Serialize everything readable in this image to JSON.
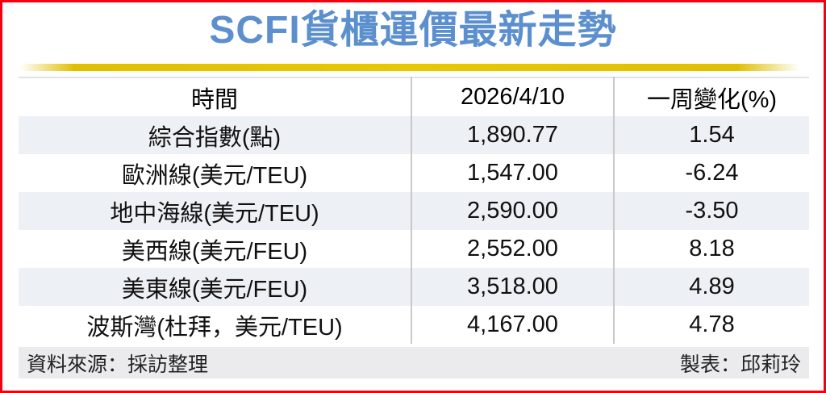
{
  "title": "SCFI貨櫃運價最新走勢",
  "table": {
    "columns": [
      "時間",
      "2026/4/10",
      "一周變化(%)"
    ],
    "rows": [
      {
        "label": "綜合指數(點)",
        "value": "1,890.77",
        "change": "1.54"
      },
      {
        "label": "歐洲線(美元/TEU)",
        "value": "1,547.00",
        "change": "-6.24"
      },
      {
        "label": "地中海線(美元/TEU)",
        "value": "2,590.00",
        "change": "-3.50"
      },
      {
        "label": "美西線(美元/FEU)",
        "value": "2,552.00",
        "change": "8.18"
      },
      {
        "label": "美東線(美元/FEU)",
        "value": "3,518.00",
        "change": "4.89"
      },
      {
        "label": "波斯灣(杜拜，美元/TEU)",
        "value": "4,167.00",
        "change": "4.78"
      }
    ]
  },
  "footer": {
    "source": "資料來源：採訪整理",
    "credit": "製表：邱莉玲"
  },
  "colors": {
    "title_blue": "#5b8fce",
    "gold_bar": "#e2be00",
    "frame_red": "#f2000e",
    "row_stripe": "#edf0f5",
    "footer_bg": "#ebebed",
    "divider_gray": "#c9c9c9"
  },
  "chart_data": {
    "type": "table",
    "title": "SCFI貨櫃運價最新走勢",
    "columns": [
      "時間",
      "2026/4/10",
      "一周變化(%)"
    ],
    "rows": [
      [
        "綜合指數(點)",
        1890.77,
        1.54
      ],
      [
        "歐洲線(美元/TEU)",
        1547.0,
        -6.24
      ],
      [
        "地中海線(美元/TEU)",
        2590.0,
        -3.5
      ],
      [
        "美西線(美元/FEU)",
        2552.0,
        8.18
      ],
      [
        "美東線(美元/FEU)",
        3518.0,
        4.89
      ],
      [
        "波斯灣(杜拜，美元/TEU)",
        4167.0,
        4.78
      ]
    ],
    "notes": "SCFI container freight index levels for 2026/4/10 with one-week percent change per route"
  }
}
